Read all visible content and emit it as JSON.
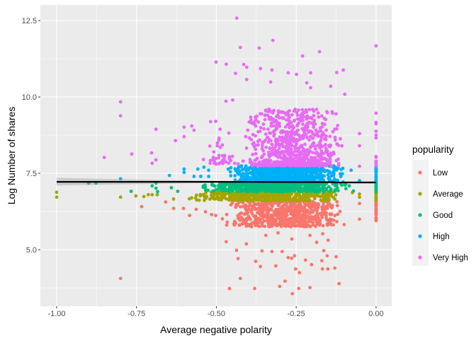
{
  "chart_data": {
    "type": "scatter",
    "title": "",
    "xlabel": "Average negative polarity",
    "ylabel": "Log Number of shares",
    "xlim": [
      -1.051,
      0.049
    ],
    "ylim": [
      3.15,
      13.01
    ],
    "x_ticks": [
      -1.0,
      -0.75,
      -0.5,
      -0.25,
      0.0
    ],
    "x_tick_labels": [
      "-1.00",
      "-0.75",
      "-0.50",
      "-0.25",
      "0.00"
    ],
    "y_ticks": [
      5.0,
      7.5,
      10.0,
      12.5
    ],
    "y_tick_labels": [
      "5.0",
      "7.5",
      "10.0",
      "12.5"
    ],
    "grid": true,
    "legend": {
      "title": "popularity",
      "placement": "right",
      "entries": [
        "Low",
        "Average",
        "Good",
        "High",
        "Very High"
      ]
    },
    "smooth_line": {
      "x": [
        -1.0,
        -0.5,
        -0.13,
        -0.13,
        0.0
      ],
      "y": [
        7.22,
        7.22,
        7.21,
        7.2,
        7.2
      ],
      "ci_low": [
        7.1,
        7.19,
        7.2,
        7.18,
        7.16
      ],
      "ci_high": [
        7.35,
        7.25,
        7.23,
        7.23,
        7.25
      ],
      "color": "#000000"
    },
    "series": [
      {
        "name": "Low",
        "color": "#F8766D",
        "points": [
          [
            -0.8,
            4.06
          ],
          [
            -0.459,
            3.73
          ],
          [
            -0.38,
            3.73
          ],
          [
            -0.262,
            3.56
          ],
          [
            -0.116,
            3.89
          ],
          [
            -0.302,
            3.8
          ],
          [
            -0.207,
            3.76
          ],
          [
            -0.242,
            3.73
          ],
          [
            -0.425,
            4.06
          ],
          [
            -0.285,
            3.97
          ],
          [
            -0.469,
            5.26
          ],
          [
            -0.406,
            5.19
          ],
          [
            -0.437,
            4.98
          ],
          [
            -0.432,
            4.71
          ],
          [
            -0.377,
            4.62
          ],
          [
            -0.362,
            4.45
          ],
          [
            -0.357,
            4.96
          ],
          [
            -0.326,
            4.94
          ],
          [
            -0.314,
            4.47
          ],
          [
            -0.294,
            4.94
          ],
          [
            -0.275,
            4.74
          ],
          [
            -0.264,
            4.72
          ],
          [
            -0.255,
            4.8
          ],
          [
            -0.252,
            4.37
          ],
          [
            -0.24,
            4.25
          ],
          [
            -0.221,
            4.66
          ],
          [
            -0.202,
            4.51
          ],
          [
            -0.17,
            4.64
          ],
          [
            -0.168,
            4.37
          ],
          [
            -0.151,
            4.37
          ],
          [
            -0.129,
            4.4
          ],
          [
            -0.125,
            4.77
          ],
          [
            -0.153,
            4.8
          ],
          [
            -0.164,
            4.97
          ],
          [
            -0.186,
            5.24
          ],
          [
            -0.15,
            5.31
          ],
          [
            -0.167,
            5.52
          ],
          [
            -0.207,
            5.47
          ],
          [
            -0.264,
            5.35
          ],
          [
            -0.307,
            5.55
          ],
          [
            -0.345,
            5.47
          ],
          [
            -0.378,
            5.82
          ],
          [
            -0.734,
            6.41
          ],
          [
            -0.659,
            6.56
          ],
          [
            -0.634,
            6.35
          ],
          [
            -0.603,
            6.35
          ],
          [
            -0.584,
            6.12
          ],
          [
            -0.563,
            6.32
          ],
          [
            -0.534,
            6.24
          ],
          [
            -0.515,
            6.15
          ],
          [
            -0.502,
            6.12
          ],
          [
            -0.481,
            6.01
          ],
          [
            -0.1,
            5.82
          ],
          [
            -0.052,
            6.0
          ],
          [
            -0.052,
            6.51
          ]
        ],
        "clusters": [
          {
            "x": [
              -0.47,
              -0.1
            ],
            "y": [
              5.75,
              6.6
            ],
            "n": 650
          },
          {
            "x": [
              0,
              0
            ],
            "y": [
              5.9,
              6.6
            ],
            "n": 40
          }
        ]
      },
      {
        "name": "Average",
        "color": "#A3A500",
        "points": [
          [
            -1.0,
            6.88
          ],
          [
            -1.0,
            6.72
          ],
          [
            -0.8,
            6.72
          ],
          [
            -0.752,
            6.76
          ],
          [
            -0.727,
            6.74
          ],
          [
            -0.713,
            6.8
          ],
          [
            -0.701,
            6.8
          ],
          [
            -0.685,
            6.8
          ],
          [
            -0.634,
            6.66
          ],
          [
            -0.074,
            6.87
          ],
          [
            -0.052,
            6.82
          ],
          [
            -0.052,
            6.72
          ]
        ],
        "clusters": [
          {
            "x": [
              -0.6,
              -0.1
            ],
            "y": [
              6.6,
              6.9
            ],
            "n": 550
          },
          {
            "x": [
              0,
              0
            ],
            "y": [
              6.6,
              6.9
            ],
            "n": 15
          }
        ]
      },
      {
        "name": "Good",
        "color": "#00BF7D",
        "points": [
          [
            -0.9,
            7.18
          ],
          [
            -0.877,
            7.18
          ],
          [
            -0.767,
            6.91
          ],
          [
            -0.701,
            7.09
          ],
          [
            -0.689,
            7.01
          ],
          [
            -0.684,
            6.9
          ],
          [
            -0.641,
            7.03
          ],
          [
            -0.621,
            6.91
          ],
          [
            -0.689,
            7.18
          ],
          [
            -0.084,
            7.09
          ],
          [
            -0.071,
            6.92
          ]
        ],
        "clusters": [
          {
            "x": [
              -0.55,
              -0.08
            ],
            "y": [
              6.9,
              7.2
            ],
            "n": 550
          },
          {
            "x": [
              0,
              0
            ],
            "y": [
              6.9,
              7.2
            ],
            "n": 15
          }
        ]
      },
      {
        "name": "High",
        "color": "#00B0F6",
        "points": [
          [
            -0.8,
            7.32
          ],
          [
            -0.647,
            7.43
          ],
          [
            -0.601,
            7.64
          ],
          [
            -0.601,
            7.53
          ],
          [
            -0.558,
            7.64
          ],
          [
            -0.539,
            7.7
          ],
          [
            -0.57,
            7.4
          ],
          [
            -0.549,
            7.4
          ],
          [
            -0.524,
            7.6
          ],
          [
            -0.524,
            7.4
          ],
          [
            -0.078,
            7.6
          ],
          [
            -0.052,
            7.26
          ]
        ],
        "clusters": [
          {
            "x": [
              -0.47,
              -0.09
            ],
            "y": [
              7.2,
              7.75
            ],
            "n": 700
          },
          {
            "x": [
              0,
              0
            ],
            "y": [
              7.2,
              7.75
            ],
            "n": 25
          }
        ]
      },
      {
        "name": "Very High",
        "color": "#E76BF3",
        "points": [
          [
            -0.436,
            12.58
          ],
          [
            -0.323,
            11.85
          ],
          [
            0.0,
            11.67
          ],
          [
            -0.425,
            11.62
          ],
          [
            -0.366,
            11.6
          ],
          [
            -0.177,
            11.48
          ],
          [
            -0.23,
            11.34
          ],
          [
            -0.501,
            11.14
          ],
          [
            -0.469,
            11.07
          ],
          [
            -0.414,
            11.06
          ],
          [
            -0.405,
            10.97
          ],
          [
            -0.362,
            10.93
          ],
          [
            -0.103,
            10.88
          ],
          [
            -0.123,
            10.8
          ],
          [
            -0.44,
            10.77
          ],
          [
            -0.326,
            10.88
          ],
          [
            -0.275,
            10.79
          ],
          [
            -0.249,
            10.74
          ],
          [
            -0.205,
            10.79
          ],
          [
            -0.405,
            10.57
          ],
          [
            -0.33,
            10.49
          ],
          [
            -0.217,
            10.46
          ],
          [
            -0.142,
            10.35
          ],
          [
            -0.205,
            10.3
          ],
          [
            -0.8,
            9.84
          ],
          [
            -0.8,
            9.38
          ],
          [
            -0.689,
            8.94
          ],
          [
            -0.851,
            8.02
          ],
          [
            -0.765,
            8.13
          ],
          [
            -0.703,
            8.17
          ],
          [
            -0.701,
            7.83
          ],
          [
            -0.689,
            7.94
          ],
          [
            -0.628,
            8.57
          ],
          [
            -0.601,
            9.01
          ],
          [
            -0.577,
            9.05
          ],
          [
            -0.57,
            8.91
          ],
          [
            -0.601,
            8.7
          ],
          [
            -0.518,
            9.19
          ],
          [
            -0.502,
            9.2
          ],
          [
            -0.47,
            9.86
          ],
          [
            -0.449,
            9.9
          ],
          [
            -0.098,
            10.09
          ],
          [
            -0.052,
            8.8
          ],
          [
            -0.052,
            8.4
          ],
          [
            -0.052,
            7.73
          ]
        ],
        "clusters": [
          {
            "x": [
              -0.42,
              -0.1
            ],
            "y": [
              7.75,
              9.6
            ],
            "n": 750
          },
          {
            "x": [
              -0.55,
              -0.42
            ],
            "y": [
              7.8,
              9.0
            ],
            "n": 40
          },
          {
            "x": [
              0,
              0
            ],
            "y": [
              7.75,
              9.5
            ],
            "n": 20
          }
        ]
      }
    ]
  }
}
